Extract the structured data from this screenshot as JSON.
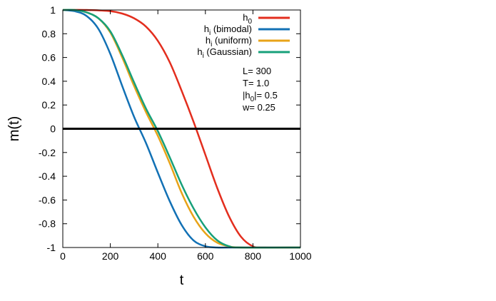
{
  "chart_data": {
    "type": "line",
    "xlabel": "t",
    "ylabel": "m(t)",
    "xlim": [
      0,
      1000
    ],
    "ylim": [
      -1,
      1
    ],
    "x_ticks": [
      "0",
      "200",
      "400",
      "600",
      "800",
      "1000"
    ],
    "y_ticks": [
      "1",
      "0.8",
      "0.6",
      "0.4",
      "0.2",
      "0",
      "-0.2",
      "-0.4",
      "-0.6",
      "-0.8",
      "-1"
    ],
    "grid": false,
    "legend_position": "top-right",
    "series": [
      {
        "name_main": "h",
        "name_sub": "0",
        "name_rest": "",
        "color": "#e32e1e",
        "x": [
          0,
          100,
          200,
          250,
          300,
          350,
          400,
          450,
          500,
          550,
          600,
          650,
          700,
          750,
          800,
          850,
          1000
        ],
        "y": [
          1,
          1,
          0.99,
          0.97,
          0.93,
          0.86,
          0.74,
          0.56,
          0.32,
          0.06,
          -0.22,
          -0.5,
          -0.74,
          -0.91,
          -0.99,
          -1,
          -1
        ]
      },
      {
        "name_main": "h",
        "name_sub": "i",
        "name_rest": " (bimodal)",
        "color": "#1271b5",
        "x": [
          0,
          50,
          100,
          150,
          200,
          250,
          300,
          350,
          400,
          450,
          500,
          550,
          600,
          650,
          700,
          1000
        ],
        "y": [
          1,
          0.99,
          0.95,
          0.84,
          0.63,
          0.36,
          0.1,
          -0.12,
          -0.37,
          -0.61,
          -0.81,
          -0.94,
          -0.99,
          -1,
          -1,
          -1
        ]
      },
      {
        "name_main": "h",
        "name_sub": "i",
        "name_rest": " (uniform)",
        "color": "#e8a318",
        "x": [
          0,
          50,
          100,
          150,
          200,
          250,
          300,
          350,
          400,
          450,
          500,
          550,
          600,
          650,
          700,
          750,
          1000
        ],
        "y": [
          1,
          1,
          0.98,
          0.93,
          0.81,
          0.6,
          0.36,
          0.14,
          -0.06,
          -0.29,
          -0.54,
          -0.74,
          -0.88,
          -0.96,
          -0.99,
          -1,
          -1
        ]
      },
      {
        "name_main": "h",
        "name_sub": "i",
        "name_rest": " (Gaussian)",
        "color": "#17a07a",
        "x": [
          0,
          50,
          100,
          150,
          200,
          250,
          300,
          350,
          400,
          450,
          500,
          550,
          600,
          650,
          700,
          750,
          1000
        ],
        "y": [
          1,
          1,
          0.98,
          0.93,
          0.82,
          0.62,
          0.39,
          0.17,
          -0.02,
          -0.24,
          -0.47,
          -0.67,
          -0.83,
          -0.94,
          -0.99,
          -1,
          -1
        ]
      }
    ],
    "annotations": [
      "L= 300",
      "T= 1.0",
      "|h",
      "0",
      "|= 0.5",
      "w= 0.25"
    ],
    "reference_line": {
      "y": 0,
      "color": "#000000"
    }
  }
}
